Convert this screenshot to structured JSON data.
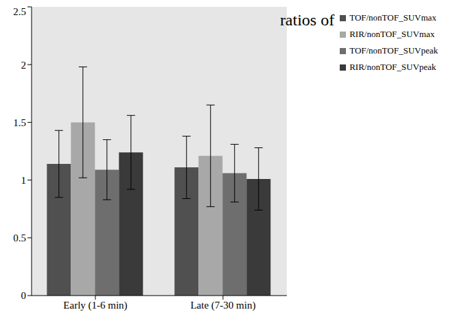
{
  "chart_data": {
    "type": "bar",
    "legend_title": "ratios of",
    "categories": [
      "Early (1-6 min)",
      "Late (7-30 min)"
    ],
    "series": [
      {
        "name": "TOF/nonTOF_SUVmax",
        "color": "#505050",
        "values": [
          1.14,
          1.11
        ],
        "errors": [
          0.29,
          0.27
        ]
      },
      {
        "name": "RIR/nonTOF_SUVmax",
        "color": "#a8a8a8",
        "values": [
          1.5,
          1.21
        ],
        "errors": [
          0.48,
          0.44
        ]
      },
      {
        "name": "TOF/nonTOF_SUVpeak",
        "color": "#6e6e6e",
        "values": [
          1.09,
          1.06
        ],
        "errors": [
          0.26,
          0.25
        ]
      },
      {
        "name": "RIR/nonTOF_SUVpeak",
        "color": "#3a3a3a",
        "values": [
          1.24,
          1.01
        ],
        "errors": [
          0.32,
          0.27
        ]
      }
    ],
    "ylim": [
      0,
      2.5
    ],
    "yticks": [
      0,
      0.5,
      1,
      1.5,
      2,
      2.5
    ],
    "grid": false,
    "legend": "upper right"
  }
}
